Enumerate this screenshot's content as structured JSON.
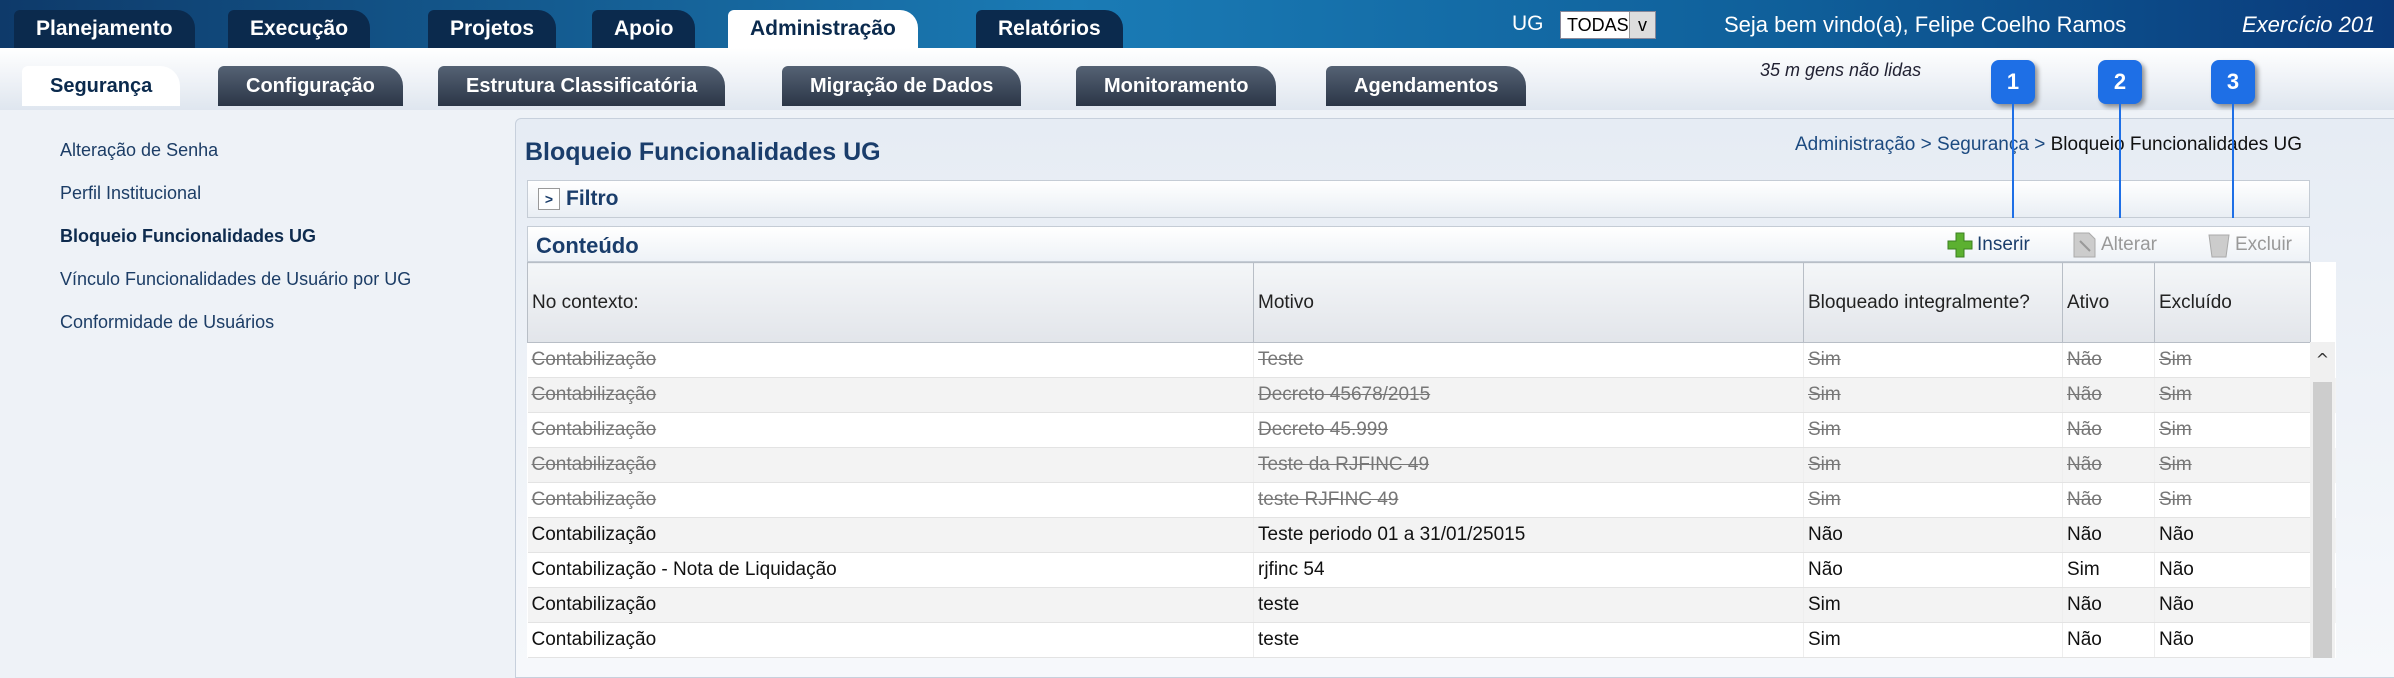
{
  "top_tabs": [
    "Planejamento",
    "Execução",
    "Projetos",
    "Apoio",
    "Administração",
    "Relatórios"
  ],
  "top_active": "Administração",
  "ug": {
    "label": "UG",
    "value": "TODAS",
    "arrow": "v"
  },
  "welcome": "Seja bem vindo(a), Felipe Coelho Ramos",
  "exercicio": "Exercício 201",
  "sub_tabs": [
    "Segurança",
    "Configuração",
    "Estrutura Classificatória",
    "Migração de Dados",
    "Monitoramento",
    "Agendamentos"
  ],
  "sub_active": "Segurança",
  "messages": "35 m     gens não lidas",
  "sidebar": {
    "items": [
      {
        "label": "Alteração de Senha"
      },
      {
        "label": "Perfil Institucional"
      },
      {
        "label": "Bloqueio Funcionalidades UG",
        "active": true
      },
      {
        "label": "Vínculo Funcionalidades de Usuário por UG"
      },
      {
        "label": "Conformidade de Usuários"
      }
    ]
  },
  "page_title": "Bloqueio Funcionalidades UG",
  "breadcrumb": {
    "b1": "Administração",
    "b2": "Segurança",
    "current": "Bloqueio Funcionalidades UG",
    "sep": ">"
  },
  "filtro": {
    "label": "Filtro",
    "icon": "chevron-right-icon"
  },
  "conteudo": {
    "label": "Conteúdo",
    "inserir": "Inserir",
    "alterar": "Alterar",
    "excluir": "Excluir"
  },
  "table": {
    "headers": [
      "No contexto:",
      "Motivo",
      "Bloqueado integralmente?",
      "Ativo",
      "Excluído"
    ],
    "rows": [
      {
        "deleted": true,
        "cells": [
          "Contabilização",
          "Teste",
          "Sim",
          "Não",
          "Sim"
        ]
      },
      {
        "deleted": true,
        "cells": [
          "Contabilização",
          "Decreto 45678/2015",
          "Sim",
          "Não",
          "Sim"
        ]
      },
      {
        "deleted": true,
        "cells": [
          "Contabilização",
          "Decreto 45.999",
          "Sim",
          "Não",
          "Sim"
        ]
      },
      {
        "deleted": true,
        "cells": [
          "Contabilização",
          "Teste da RJFINC 49",
          "Sim",
          "Não",
          "Sim"
        ]
      },
      {
        "deleted": true,
        "cells": [
          "Contabilização",
          "teste RJFINC 49",
          "Sim",
          "Não",
          "Sim"
        ]
      },
      {
        "deleted": false,
        "cells": [
          "Contabilização",
          "Teste periodo 01 a 31/01/25015",
          "Não",
          "Não",
          "Não"
        ]
      },
      {
        "deleted": false,
        "cells": [
          "Contabilização - Nota de Liquidação",
          "rjfinc 54",
          "Não",
          "Sim",
          "Não"
        ]
      },
      {
        "deleted": false,
        "cells": [
          "Contabilização",
          "teste",
          "Sim",
          "Não",
          "Não"
        ]
      },
      {
        "deleted": false,
        "cells": [
          "Contabilização",
          "teste",
          "Sim",
          "Não",
          "Não"
        ]
      }
    ]
  },
  "callouts": [
    "1",
    "2",
    "3"
  ],
  "colors": {
    "accent": "#1e6fe6",
    "nav": "#0b2a4d",
    "title": "#1a3d6b"
  }
}
